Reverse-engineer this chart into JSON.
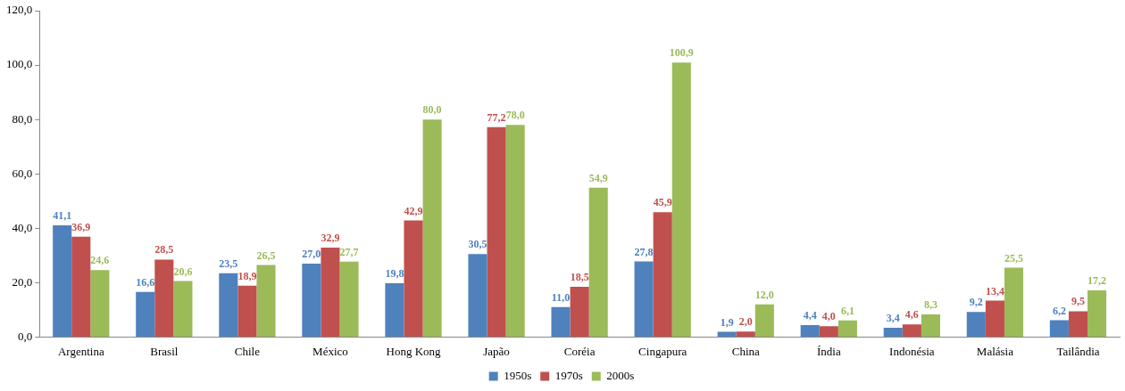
{
  "chart_data": {
    "type": "bar",
    "categories": [
      "Argentina",
      "Brasil",
      "Chile",
      "México",
      "Hong Kong",
      "Japão",
      "Coréia",
      "Cingapura",
      "China",
      "Índia",
      "Indonésia",
      "Malásia",
      "Tailândia"
    ],
    "series": [
      {
        "name": "1950s",
        "color": "#4f81bd",
        "values": [
          41.1,
          16.6,
          23.5,
          27.0,
          19.8,
          30.5,
          11.0,
          27.8,
          1.9,
          4.4,
          3.4,
          9.2,
          6.2
        ],
        "value_labels": [
          "41,1",
          "16,6",
          "23,5",
          "27,0",
          "19,8",
          "30,5",
          "11,0",
          "27,8",
          "1,9",
          "4,4",
          "3,4",
          "9,2",
          "6,2"
        ]
      },
      {
        "name": "1970s",
        "color": "#c0504d",
        "values": [
          36.9,
          28.5,
          18.9,
          32.9,
          42.9,
          77.2,
          18.5,
          45.9,
          2.0,
          4.0,
          4.6,
          13.4,
          9.5
        ],
        "value_labels": [
          "36,9",
          "28,5",
          "18,9",
          "32,9",
          "42,9",
          "77,2",
          "18,5",
          "45,9",
          "2,0",
          "4,0",
          "4,6",
          "13,4",
          "9,5"
        ]
      },
      {
        "name": "2000s",
        "color": "#9bbb59",
        "values": [
          24.6,
          20.6,
          26.5,
          27.7,
          80.0,
          78.0,
          54.9,
          100.9,
          12.0,
          6.1,
          8.3,
          25.5,
          17.2
        ],
        "value_labels": [
          "24,6",
          "20,6",
          "26,5",
          "27,7",
          "80,0",
          "78,0",
          "54,9",
          "100,9",
          "12,0",
          "6,1",
          "8,3",
          "25,5",
          "17,2"
        ]
      }
    ],
    "ylim": [
      0,
      120
    ],
    "yticks": [
      {
        "value": 0,
        "label": "0,0"
      },
      {
        "value": 20,
        "label": "20,0"
      },
      {
        "value": 40,
        "label": "40,0"
      },
      {
        "value": 60,
        "label": "60,0"
      },
      {
        "value": 80,
        "label": "80,0"
      },
      {
        "value": 100,
        "label": "100,0"
      },
      {
        "value": 120,
        "label": "120,0"
      }
    ],
    "grid": false,
    "legend": "bottom"
  }
}
